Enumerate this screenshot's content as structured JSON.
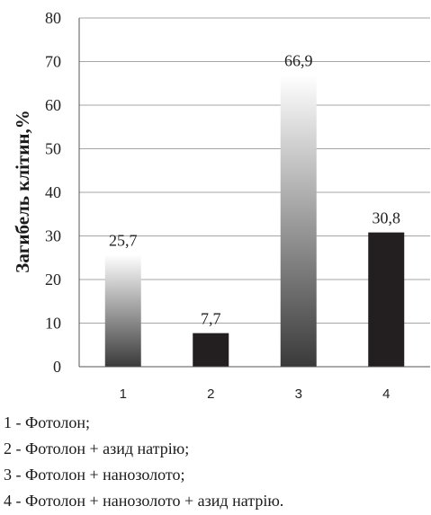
{
  "chart_data": {
    "type": "bar",
    "categories": [
      "1",
      "2",
      "3",
      "4"
    ],
    "values": [
      25.7,
      7.7,
      66.9,
      30.8
    ],
    "value_labels": [
      "25,7",
      "7,7",
      "66,9",
      "30,8"
    ],
    "bar_styles": [
      "gradient",
      "solid",
      "gradient",
      "solid"
    ],
    "title": "",
    "xlabel": "",
    "ylabel": "Загибель клітин,%",
    "ylim": [
      0,
      80
    ],
    "yticks": [
      0,
      10,
      20,
      30,
      40,
      50,
      60,
      70,
      80
    ],
    "grid": true,
    "colors": {
      "solid": "#231f20",
      "gradient_top": "#ffffff",
      "gradient_bottom": "#3a3a3a",
      "gridline": "#a6a6a6",
      "axis": "#555555"
    }
  },
  "legend": [
    "1 - Фотолон;",
    "2 - Фотолон + азид натрію;",
    "3 - Фотолон + нанозолото;",
    "4 - Фотолон + нанозолото + азид натрію."
  ]
}
